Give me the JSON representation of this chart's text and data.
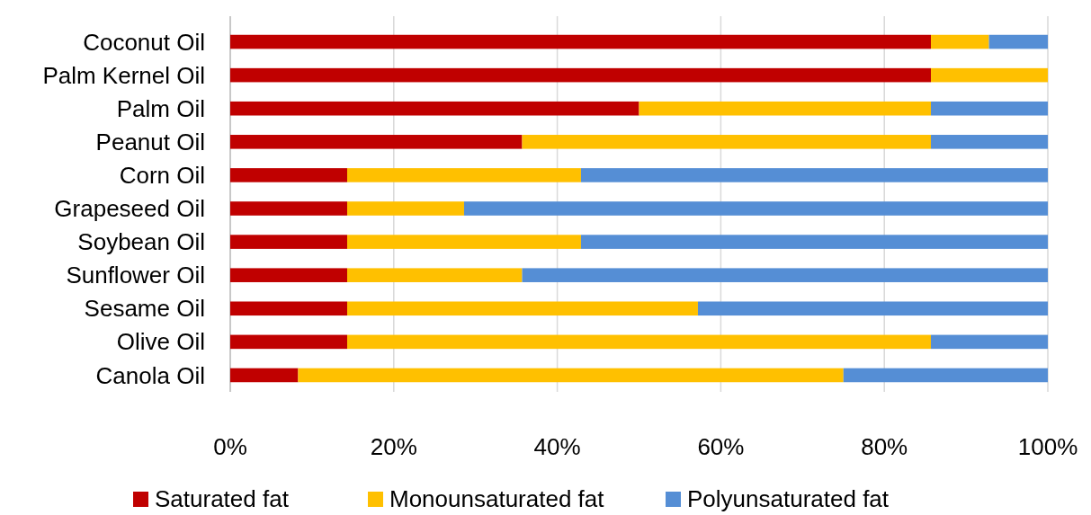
{
  "chart_data": {
    "type": "bar",
    "orientation": "horizontal",
    "stacked": true,
    "categories": [
      "Coconut Oil",
      "Palm Kernel Oil",
      "Palm Oil",
      "Peanut Oil",
      "Corn Oil",
      "Grapeseed Oil",
      "Soybean Oil",
      "Sunflower Oil",
      "Sesame Oil",
      "Olive Oil",
      "Canola Oil"
    ],
    "series": [
      {
        "name": "Saturated fat",
        "color": "#c00000",
        "values": [
          85.7,
          85.7,
          50,
          35.7,
          14.3,
          14.3,
          14.3,
          14.3,
          14.3,
          14.3,
          8.3
        ]
      },
      {
        "name": "Monounsaturated fat",
        "color": "#ffc000",
        "values": [
          7.1,
          14.3,
          35.7,
          50,
          28.6,
          14.3,
          28.6,
          21.4,
          42.9,
          71.4,
          66.7
        ]
      },
      {
        "name": "Polyunsaturated fat",
        "color": "#558ed5",
        "values": [
          7.2,
          0,
          14.3,
          14.3,
          57.1,
          71.4,
          57.1,
          64.3,
          42.8,
          14.3,
          25
        ]
      }
    ],
    "xlim": [
      0,
      100
    ],
    "xticks": [
      {
        "value": 0,
        "label": "0%"
      },
      {
        "value": 20,
        "label": "20%"
      },
      {
        "value": 40,
        "label": "40%"
      },
      {
        "value": 60,
        "label": "60%"
      },
      {
        "value": 80,
        "label": "80%"
      },
      {
        "value": 100,
        "label": "100%"
      }
    ],
    "grid": "x",
    "legend": "bottom"
  }
}
